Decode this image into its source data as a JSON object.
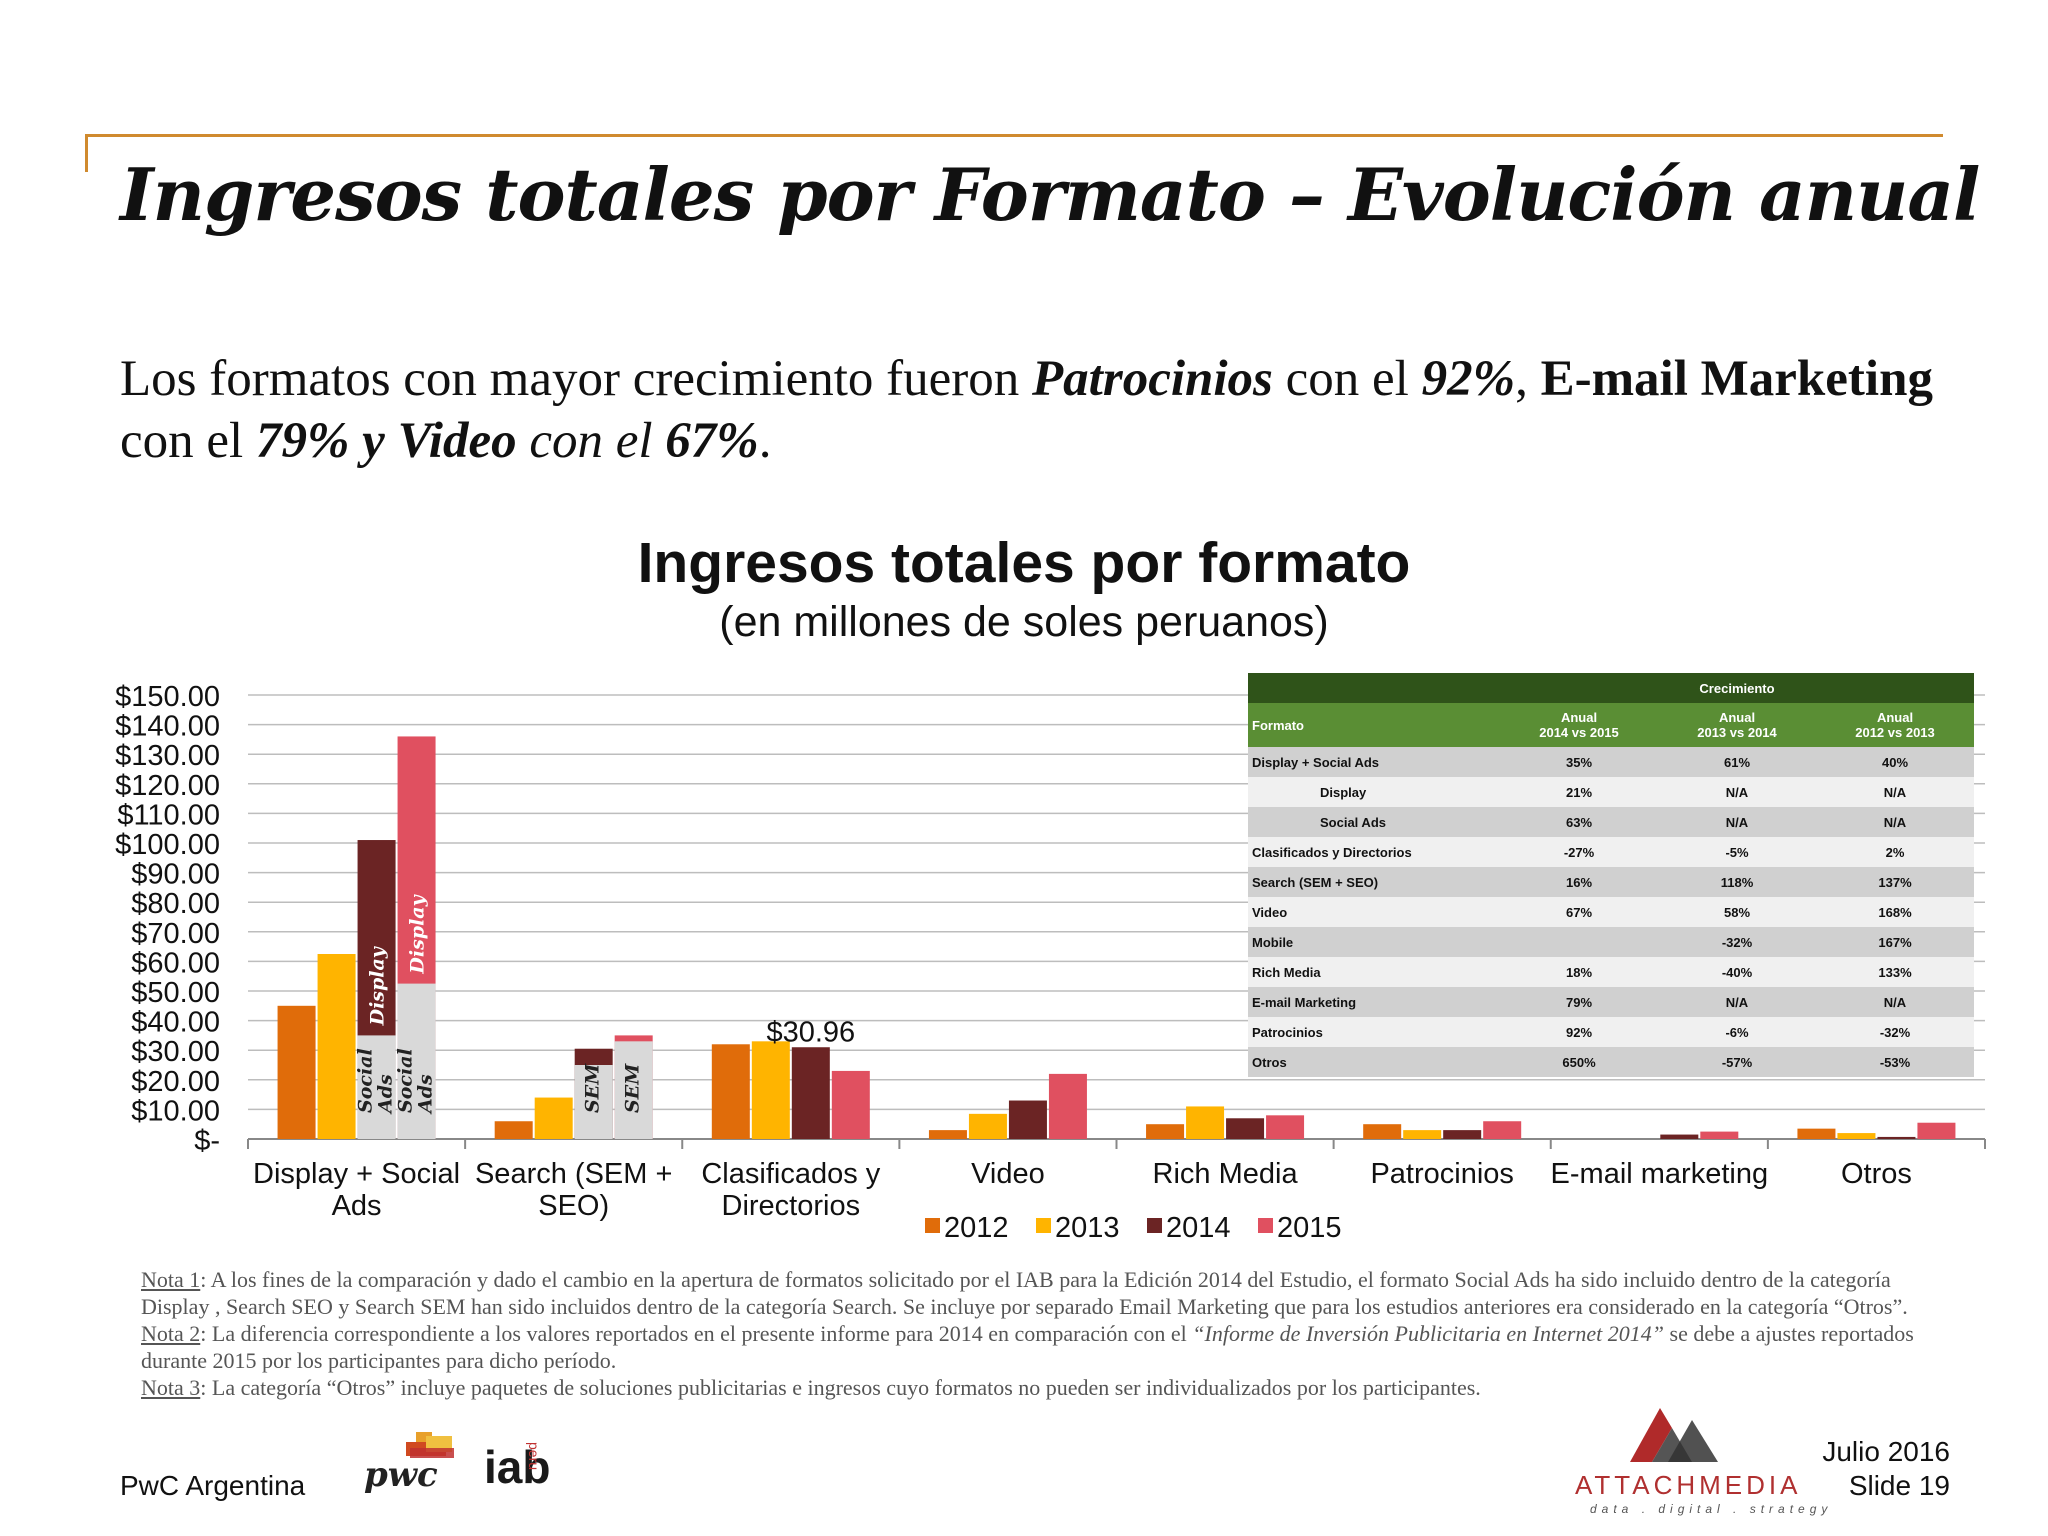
{
  "slide": {
    "title": "Ingresos totales por Formato – Evolución anual",
    "headline": {
      "p1": "Los formatos con mayor crecimiento fueron ",
      "p2": "Patrocinios",
      "p3": " con el ",
      "p4": "92%",
      "p5": ", ",
      "p6": "E-mail Marketing",
      "p7": " con el ",
      "p8": "79% y Video",
      "p9": " con el ",
      "p10": "67%",
      "p11": "."
    },
    "footer": {
      "org": "PwC Argentina",
      "pwc_logo": "pwc",
      "iab_logo": "iab",
      "iab_country": "peru",
      "attach_logo": "ATTACHMEDIA",
      "attach_tagline": "data . digital . strategy",
      "date": "Julio 2016",
      "slide_no": "Slide 19"
    },
    "notes": {
      "n1_label": "Nota 1",
      "n1_text": ": A los fines de la comparación y dado el cambio en la apertura de formatos solicitado por el IAB para la Edición 2014 del Estudio, el formato Social Ads ha sido incluido dentro de la categoría Display , Search SEO y Search SEM han sido incluidos dentro de la categoría Search. Se incluye por separado Email Marketing que para los estudios anteriores era considerado en la categoría “Otros”.",
      "n2_label": "Nota 2",
      "n2_text_a": ": La diferencia correspondiente a los valores reportados en el presente informe para 2014 en comparación con el ",
      "n2_text_i": "“Informe de Inversión Publicitaria en Internet 2014”",
      "n2_text_b": " se debe a ajustes reportados durante 2015 por los participantes para dicho período.",
      "n3_label": "Nota 3",
      "n3_text": ": La categoría “Otros” incluye paquetes de soluciones publicitarias e ingresos cuyo formatos no pueden ser individualizados por los participantes."
    }
  },
  "chart_data": {
    "type": "bar",
    "title": "Ingresos totales por formato",
    "subtitle": "(en millones de soles peruanos)",
    "ylim": [
      0,
      150
    ],
    "yticks": [
      "$150.00",
      "$140.00",
      "$130.00",
      "$120.00",
      "$110.00",
      "$100.00",
      "$90.00",
      "$80.00",
      "$70.00",
      "$60.00",
      "$50.00",
      "$40.00",
      "$30.00",
      "$20.00",
      "$10.00",
      "$-"
    ],
    "ytick_values": [
      150,
      140,
      130,
      120,
      110,
      100,
      90,
      80,
      70,
      60,
      50,
      40,
      30,
      20,
      10,
      0
    ],
    "categories": [
      "Display + Social Ads",
      "Search (SEM + SEO)",
      "Clasificados y Directorios",
      "Video",
      "Rich Media",
      "Patrocinios",
      "E-mail marketing",
      "Otros"
    ],
    "category_lines": [
      [
        "Display + Social",
        "Ads"
      ],
      [
        "Search (SEM +",
        "SEO)"
      ],
      [
        "Clasificados y",
        "Directorios"
      ],
      [
        "Video"
      ],
      [
        "Rich Media"
      ],
      [
        "Patrocinios"
      ],
      [
        "E-mail marketing"
      ],
      [
        "Otros"
      ]
    ],
    "series": [
      {
        "name": "2012",
        "color": "#e06c0a",
        "values": [
          45,
          6,
          32,
          3,
          5,
          5,
          0,
          3.5
        ]
      },
      {
        "name": "2013",
        "color": "#ffb400",
        "values": [
          62.5,
          14,
          33,
          8.5,
          11,
          3,
          0,
          2
        ]
      },
      {
        "name": "2014",
        "color": "#6b2424",
        "values": [
          101,
          30.5,
          31,
          13,
          7,
          3,
          1.5,
          0.7
        ]
      },
      {
        "name": "2015",
        "color": "#e05060",
        "values": [
          136,
          35,
          23,
          22,
          8,
          6,
          2.5,
          5.5
        ]
      }
    ],
    "stacked_segments": [
      {
        "category": 0,
        "series": "2014",
        "bottom_label": "Social Ads",
        "bottom_value": 35,
        "top_label": "Display"
      },
      {
        "category": 0,
        "series": "2015",
        "bottom_label": "Social Ads",
        "bottom_value": 52.5,
        "top_label": "Display"
      },
      {
        "category": 1,
        "series": "2014",
        "bottom_label": "SEM",
        "bottom_value": 25,
        "top_label": ""
      },
      {
        "category": 1,
        "series": "2015",
        "bottom_label": "SEM",
        "bottom_value": 33,
        "top_label": ""
      }
    ],
    "annotation": {
      "text": "$30.96",
      "category": 2
    },
    "legend": {
      "placement": "bottom"
    },
    "grid": true
  },
  "growth_table": {
    "header_top": "Crecimiento",
    "col_formato": "Formato",
    "col_headers": [
      [
        "Anual",
        "2014 vs 2015"
      ],
      [
        "Anual",
        "2013 vs 2014"
      ],
      [
        "Anual",
        "2012 vs 2013"
      ]
    ],
    "rows": [
      {
        "label": "Display + Social Ads",
        "indent": false,
        "v": [
          "35%",
          "61%",
          "40%"
        ]
      },
      {
        "label": "Display",
        "indent": true,
        "v": [
          "21%",
          "N/A",
          "N/A"
        ]
      },
      {
        "label": "Social Ads",
        "indent": true,
        "v": [
          "63%",
          "N/A",
          "N/A"
        ]
      },
      {
        "label": "Clasificados y Directorios",
        "indent": false,
        "v": [
          "-27%",
          "-5%",
          "2%"
        ]
      },
      {
        "label": "Search (SEM + SEO)",
        "indent": false,
        "v": [
          "16%",
          "118%",
          "137%"
        ]
      },
      {
        "label": "Video",
        "indent": false,
        "v": [
          "67%",
          "58%",
          "168%"
        ]
      },
      {
        "label": "Mobile",
        "indent": false,
        "v": [
          "",
          "-32%",
          "167%"
        ]
      },
      {
        "label": "Rich Media",
        "indent": false,
        "v": [
          "18%",
          "-40%",
          "133%"
        ]
      },
      {
        "label": "E-mail Marketing",
        "indent": false,
        "v": [
          "79%",
          "N/A",
          "N/A"
        ]
      },
      {
        "label": "Patrocinios",
        "indent": false,
        "v": [
          "92%",
          "-6%",
          "-32%"
        ]
      },
      {
        "label": "Otros",
        "indent": false,
        "v": [
          "650%",
          "-57%",
          "-53%"
        ]
      }
    ]
  }
}
